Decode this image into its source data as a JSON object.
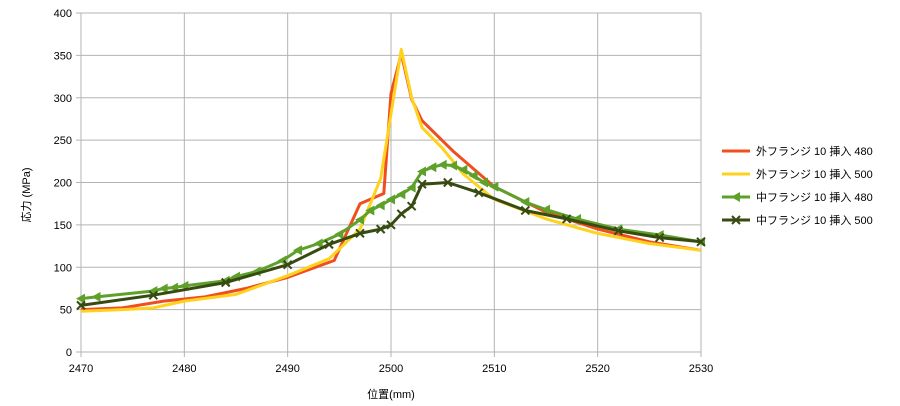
{
  "chart_data": {
    "type": "line",
    "title": "",
    "xlabel": "位置(mm)",
    "ylabel": "応力 (MPa)",
    "xlim": [
      2470,
      2530
    ],
    "ylim": [
      0,
      400
    ],
    "xticks": [
      2470,
      2480,
      2490,
      2500,
      2510,
      2520,
      2530
    ],
    "yticks": [
      0,
      50,
      100,
      150,
      200,
      250,
      300,
      350,
      400
    ],
    "grid": true,
    "legend_position": "right",
    "series": [
      {
        "name": "外フランジ 10 挿入 480",
        "color": "#f04e1e",
        "marker": "none",
        "x": [
          2470,
          2474,
          2478,
          2482,
          2486,
          2490,
          2494.5,
          2497,
          2499.3,
          2500,
          2501,
          2502,
          2503,
          2506,
          2510,
          2515,
          2520,
          2525,
          2530
        ],
        "y": [
          50,
          52,
          60,
          65,
          75,
          88,
          108,
          175,
          187,
          305,
          352,
          298,
          273,
          237,
          195,
          165,
          145,
          130,
          120
        ]
      },
      {
        "name": "外フランジ 10 挿入 500",
        "color": "#ffd21e",
        "marker": "none",
        "x": [
          2470,
          2474,
          2477,
          2480,
          2485,
          2490,
          2494,
          2497,
          2499,
          2501,
          2502,
          2503,
          2505,
          2507,
          2510,
          2515,
          2520,
          2525,
          2530
        ],
        "y": [
          48,
          50,
          52,
          60,
          68,
          90,
          110,
          145,
          205,
          357,
          300,
          265,
          240,
          210,
          180,
          157,
          140,
          128,
          120
        ]
      },
      {
        "name": "中フランジ 10 挿入 480",
        "color": "#5ea12a",
        "marker": "triangle-left",
        "x": [
          2470,
          2471.5,
          2477,
          2478,
          2479,
          2480,
          2484,
          2485,
          2487,
          2489.5,
          2491,
          2493,
          2495,
          2497,
          2498,
          2499,
          2500,
          2501,
          2502,
          2503,
          2504,
          2505,
          2506,
          2507,
          2508,
          2509,
          2510,
          2513,
          2515,
          2518,
          2522,
          2526,
          2530
        ],
        "y": [
          63,
          65,
          72,
          75,
          76,
          78,
          84,
          89,
          95,
          108,
          120,
          128,
          139,
          156,
          167,
          173,
          180,
          186,
          194,
          213,
          218,
          221,
          220,
          215,
          208,
          200,
          195,
          177,
          168,
          157,
          145,
          138,
          130
        ]
      },
      {
        "name": "中フランジ 10 挿入 500",
        "color": "#374b11",
        "marker": "x",
        "x": [
          2470,
          2477,
          2484,
          2490,
          2494,
          2497,
          2499,
          2500,
          2501,
          2502,
          2503,
          2505.5,
          2508.5,
          2513,
          2517,
          2522,
          2526,
          2530
        ],
        "y": [
          55,
          67,
          82,
          103,
          127,
          140,
          145,
          150,
          163,
          172,
          198,
          200,
          188,
          167,
          157,
          143,
          135,
          130
        ]
      }
    ]
  }
}
